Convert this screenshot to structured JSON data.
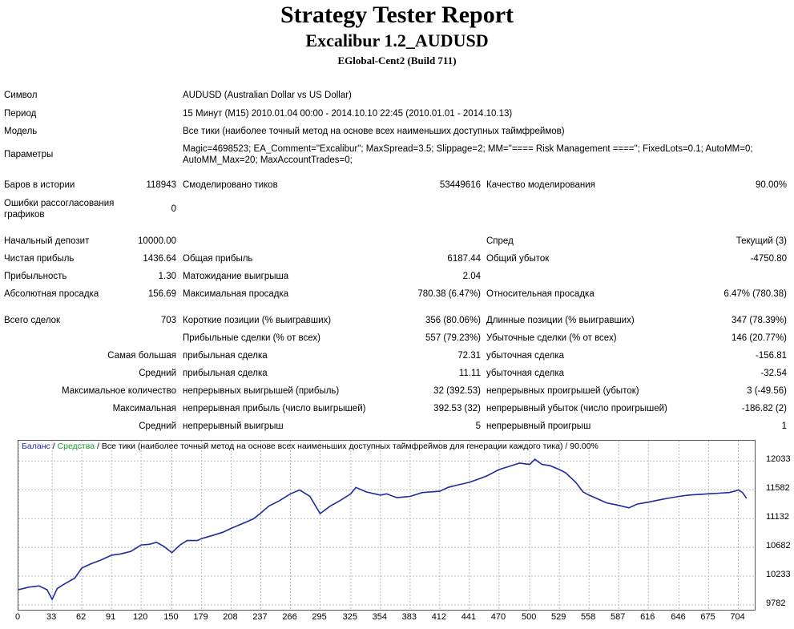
{
  "header": {
    "title": "Strategy Tester Report",
    "subtitle": "Excalibur 1.2_AUDUSD",
    "server": "EGlobal-Cent2 (Build 711)"
  },
  "info": [
    {
      "label": "Символ",
      "value": "AUDUSD (Australian Dollar vs US Dollar)"
    },
    {
      "label": "Период",
      "value": "15 Минут (M15) 2010.01.04 00:00 - 2014.10.10 22:45 (2010.01.01 - 2014.10.13)"
    },
    {
      "label": "Модель",
      "value": "Все тики (наиболее точный метод на основе всех наименьших доступных таймфреймов)"
    },
    {
      "label": "Параметры",
      "value": "Magic=4698523; EA_Comment=\"Excalibur\"; MaxSpread=3.5; Slippage=2; MM=\"==== Risk Management ====\"; FixedLots=0.1; AutoMM=0; AutoMM_Max=20; MaxAccountTrades=0;"
    }
  ],
  "bars": {
    "label": "Баров в истории",
    "value": "118943"
  },
  "ticks": {
    "label": "Смоделировано тиков",
    "value": "53449616"
  },
  "quality": {
    "label": "Качество моделирования",
    "value": "90.00%"
  },
  "errors": {
    "label": "Ошибки рассогласования графиков",
    "value": "0"
  },
  "deposit": {
    "label": "Начальный депозит",
    "value": "10000.00"
  },
  "spread": {
    "label": "Спред",
    "value": "Текущий (3)"
  },
  "net_profit": {
    "label": "Чистая прибыль",
    "value": "1436.64"
  },
  "gross_profit": {
    "label": "Общая прибыль",
    "value": "6187.44"
  },
  "gross_loss": {
    "label": "Общий убыток",
    "value": "-4750.80"
  },
  "profit_factor": {
    "label": "Прибыльность",
    "value": "1.30"
  },
  "expected_payoff": {
    "label": "Матожидание выигрыша",
    "value": "2.04"
  },
  "abs_drawdown": {
    "label": "Абсолютная просадка",
    "value": "156.69"
  },
  "max_drawdown": {
    "label": "Максимальная просадка",
    "value": "780.38 (6.47%)"
  },
  "rel_drawdown": {
    "label": "Относительная просадка",
    "value": "6.47% (780.38)"
  },
  "total_trades": {
    "label": "Всего сделок",
    "value": "703"
  },
  "short_pos": {
    "label": "Короткие позиции (% выигравших)",
    "value": "356 (80.06%)"
  },
  "long_pos": {
    "label": "Длинные позиции (% выигравших)",
    "value": "347 (78.39%)"
  },
  "profit_trades": {
    "label": "Прибыльные сделки (% от всех)",
    "value": "557 (79.23%)"
  },
  "loss_trades": {
    "label": "Убыточные сделки (% от всех)",
    "value": "146 (20.77%)"
  },
  "largest": {
    "label": "Самая большая",
    "profit_label": "прибыльная сделка",
    "profit": "72.31",
    "loss_label": "убыточная сделка",
    "loss": "-156.81"
  },
  "average": {
    "label": "Средний",
    "profit_label": "прибыльная сделка",
    "profit": "11.11",
    "loss_label": "убыточная сделка",
    "loss": "-32.54"
  },
  "max_count": {
    "label": "Максимальное количество",
    "profit_label": "непрерывных выигрышей (прибыль)",
    "profit": "32 (392.53)",
    "loss_label": "непрерывных проигрышей (убыток)",
    "loss": "3 (-49.56)"
  },
  "max_cons": {
    "label": "Максимальная",
    "profit_label": "непрерывная прибыль (число выигрышей)",
    "profit": "392.53 (32)",
    "loss_label": "непрерывный убыток (число проигрышей)",
    "loss": "-186.82 (2)"
  },
  "avg_cons": {
    "label": "Средний",
    "profit_label": "непрерывный выигрыш",
    "profit": "5",
    "loss_label": "непрерывный проигрыш",
    "loss": "1"
  },
  "chart_legend": {
    "balance": "Баланс",
    "sep1": " / ",
    "equity": "Средства",
    "sep2": " / ",
    "model": "Все тики (наиболее точный метод на основе всех наименьших доступных таймфреймов для генерации каждого тика) / 90.00%"
  },
  "chart_data": {
    "type": "line",
    "y_ticks": [
      "12033",
      "11582",
      "11132",
      "10682",
      "10233",
      "9782"
    ],
    "x_ticks": [
      "0",
      "33",
      "62",
      "91",
      "120",
      "150",
      "179",
      "208",
      "237",
      "266",
      "295",
      "325",
      "354",
      "383",
      "412",
      "441",
      "470",
      "500",
      "529",
      "558",
      "587",
      "616",
      "646",
      "675",
      "704"
    ],
    "ylim": [
      9782,
      12100
    ],
    "xlim": [
      0,
      720
    ],
    "grid": true,
    "series": [
      {
        "name": "Баланс",
        "color": "#1f2b9e",
        "x": [
          0,
          10,
          20,
          28,
          33,
          38,
          45,
          55,
          62,
          70,
          80,
          91,
          100,
          110,
          120,
          128,
          135,
          142,
          150,
          158,
          165,
          175,
          179,
          190,
          200,
          208,
          220,
          230,
          237,
          245,
          255,
          266,
          275,
          285,
          295,
          305,
          315,
          325,
          330,
          340,
          354,
          360,
          370,
          383,
          395,
          412,
          420,
          430,
          441,
          450,
          458,
          470,
          480,
          490,
          500,
          505,
          512,
          520,
          529,
          535,
          545,
          552,
          558,
          565,
          575,
          587,
          597,
          605,
          616,
          625,
          635,
          646,
          655,
          665,
          675,
          685,
          695,
          700,
          704,
          708,
          712
        ],
        "y": [
          10020,
          10060,
          10080,
          10020,
          9870,
          10040,
          10110,
          10200,
          10360,
          10420,
          10480,
          10560,
          10580,
          10620,
          10720,
          10730,
          10760,
          10700,
          10600,
          10720,
          10790,
          10790,
          10820,
          10870,
          10920,
          10980,
          11060,
          11130,
          11220,
          11330,
          11410,
          11520,
          11580,
          11480,
          11210,
          11330,
          11420,
          11520,
          11620,
          11550,
          11500,
          11520,
          11460,
          11480,
          11540,
          11560,
          11620,
          11660,
          11700,
          11750,
          11800,
          11900,
          11950,
          12000,
          11980,
          12060,
          11980,
          11960,
          11900,
          11850,
          11700,
          11550,
          11500,
          11450,
          11380,
          11340,
          11300,
          11360,
          11390,
          11420,
          11450,
          11480,
          11500,
          11510,
          11520,
          11530,
          11540,
          11560,
          11580,
          11540,
          11450
        ]
      }
    ]
  }
}
